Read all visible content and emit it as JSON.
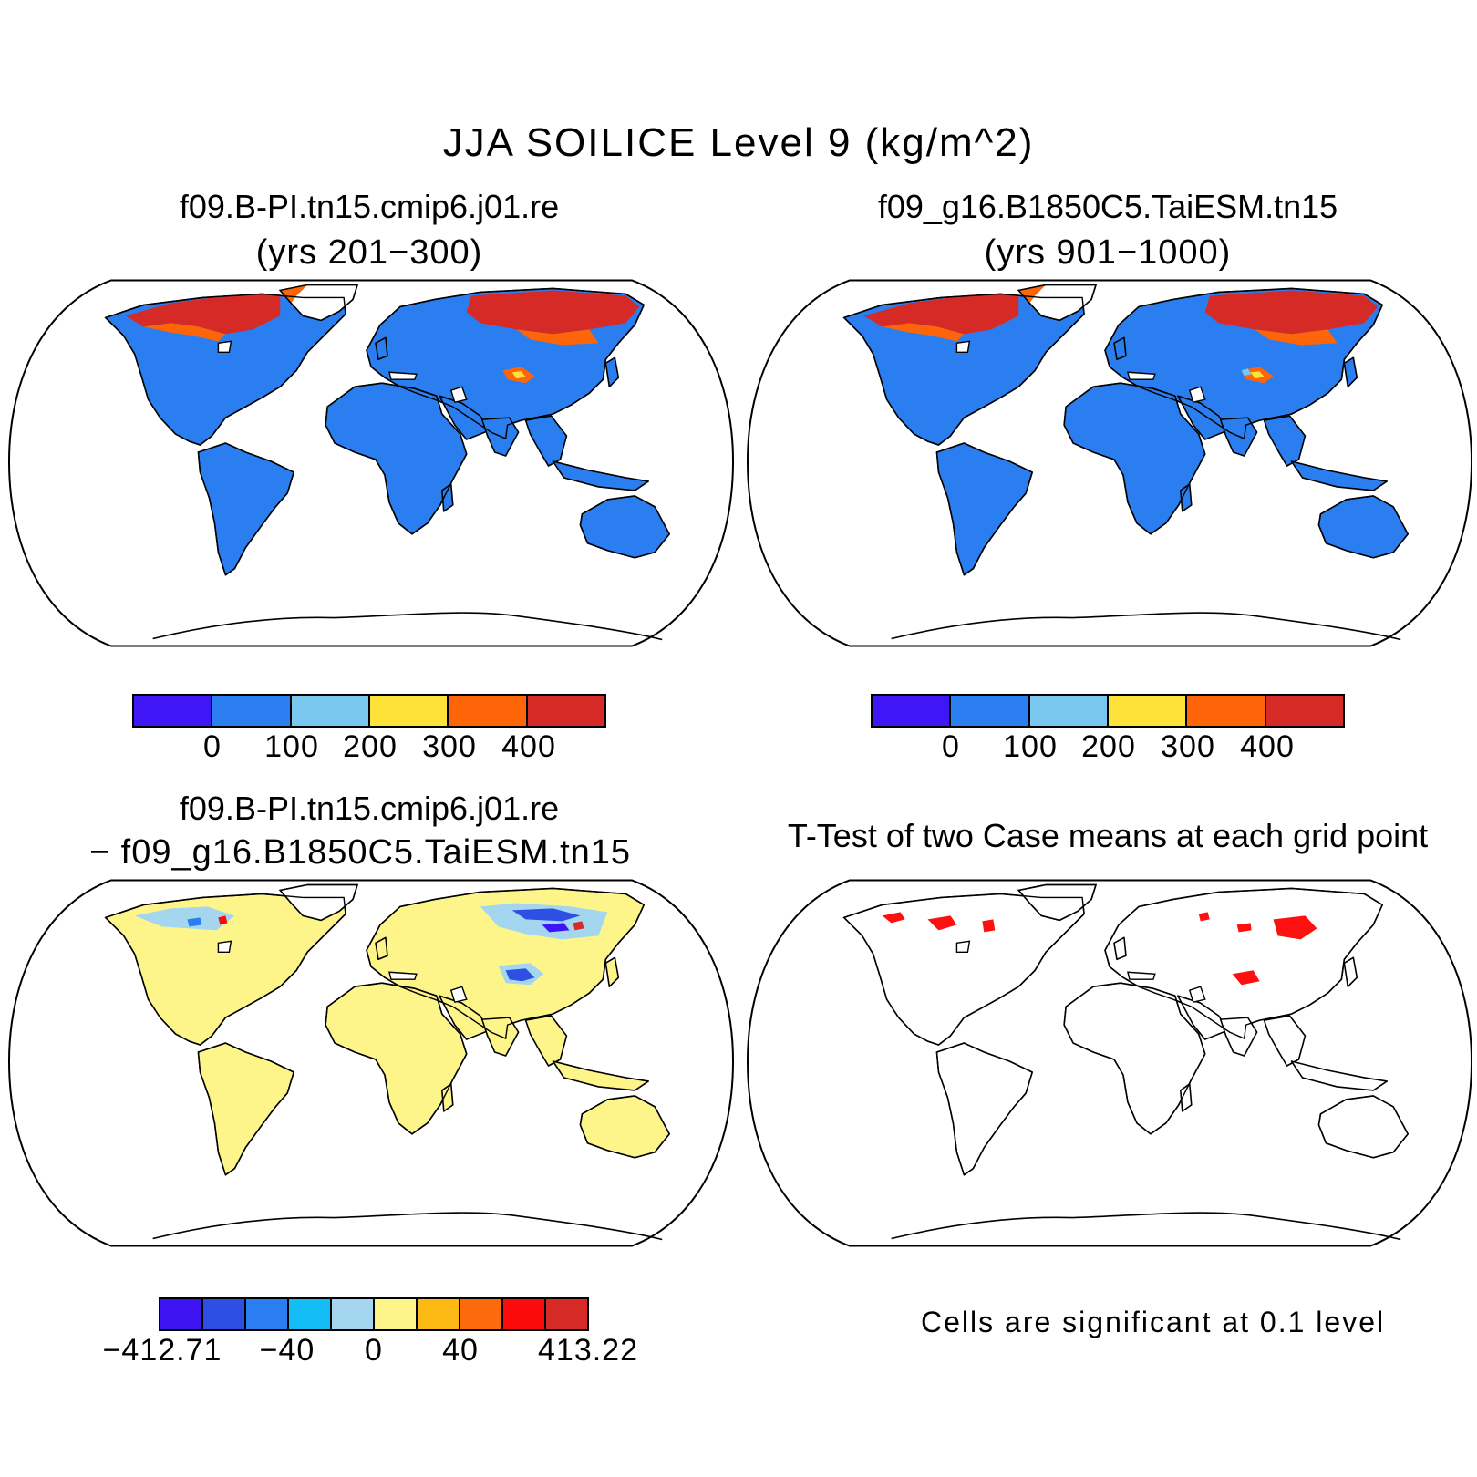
{
  "title": "JJA SOILICE Level 9 (kg/m^2)",
  "panels": {
    "top_left": {
      "title": "f09.B-PI.tn15.cmip6.j01.re",
      "subtitle": "(yrs 201−300)"
    },
    "top_right": {
      "title": "f09_g16.B1850C5.TaiESM.tn15",
      "subtitle": "(yrs 901−1000)"
    },
    "bottom_left": {
      "title": "f09.B-PI.tn15.cmip6.j01.re",
      "subtitle": "− f09_g16.B1850C5.TaiESM.tn15"
    },
    "bottom_right": {
      "title": "T-Test of two Case means at each grid point",
      "note": "Cells are significant at 0.1 level"
    }
  },
  "colorbars": {
    "absolute": {
      "colors": [
        "#3f16f5",
        "#2b7ef0",
        "#79c7ef",
        "#fde23a",
        "#fd6508",
        "#d62a27"
      ],
      "labels": [
        "0",
        "100",
        "200",
        "300",
        "400"
      ]
    },
    "difference": {
      "colors": [
        "#3e14f3",
        "#2d4fe3",
        "#2b7ef0",
        "#14bdf6",
        "#a4d6f0",
        "#fef58a",
        "#fdb913",
        "#fd6a0b",
        "#fb0b0b",
        "#d62a27"
      ],
      "labels": [
        "−412.71",
        "−40",
        "0",
        "40",
        "413.22"
      ]
    }
  },
  "land_colors": {
    "absolute": "#2b7ef0",
    "difference": "#fef58a",
    "significance": "#ff1010"
  }
}
